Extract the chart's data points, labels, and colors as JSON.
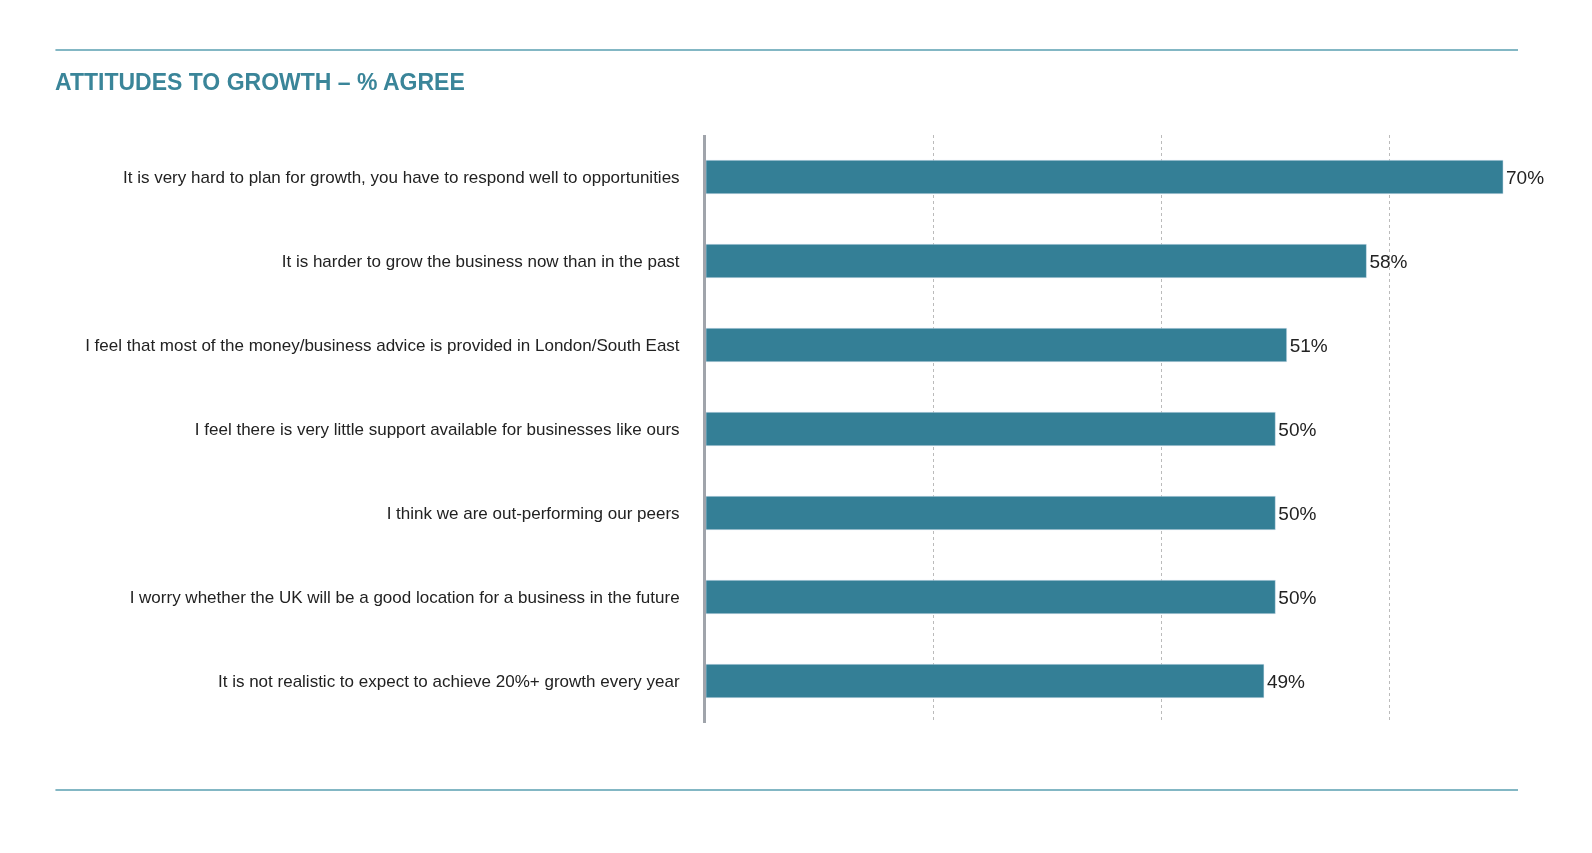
{
  "chart_data": {
    "type": "bar",
    "orientation": "horizontal",
    "title": "ATTITUDES TO GROWTH – % AGREE",
    "categories": [
      "It is very hard to plan for growth, you have to respond well to opportunities",
      "It is harder to grow the business now than in the past",
      "I feel that most of the money/business advice is provided in London/South East",
      "I feel there is very little support available for businesses like ours",
      "I think we are out-performing our peers",
      "I worry whether the UK will be a good location for a business in the future",
      "It is not realistic to expect to achieve 20%+ growth every year"
    ],
    "values": [
      70,
      58,
      51,
      50,
      50,
      50,
      49
    ],
    "value_labels": [
      "70%",
      "58%",
      "51%",
      "50%",
      "50%",
      "50%",
      "49%"
    ],
    "color": "#347f96",
    "xticks": [
      {
        "value": 0,
        "label": null
      },
      {
        "value": 20,
        "label": null
      },
      {
        "value": 40,
        "label": null
      },
      {
        "value": 60,
        "label": null
      }
    ],
    "tick_labels": "y",
    "grid": "x",
    "legend": false
  }
}
